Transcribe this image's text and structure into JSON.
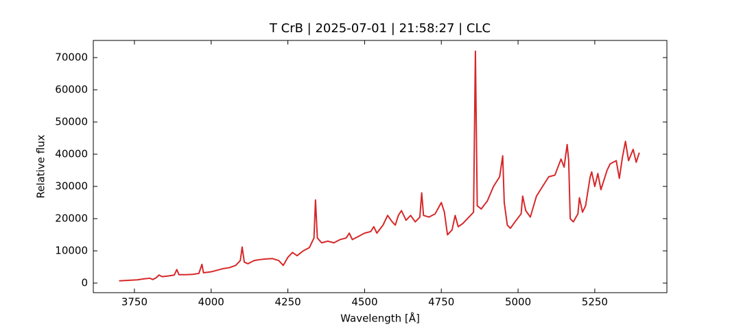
{
  "chart_data": {
    "type": "line",
    "title": "T CrB | 2025-07-01 | 21:58:27 | CLC",
    "x_label": "Wavelength [Å]",
    "y_label": "Relative flux",
    "color": "#d62728",
    "xlim": [
      3616,
      5485
    ],
    "ylim": [
      -2980,
      75320
    ],
    "xticks": [
      3750,
      4000,
      4250,
      4500,
      4750,
      5000,
      5250
    ],
    "yticks": [
      0,
      10000,
      20000,
      30000,
      40000,
      50000,
      60000,
      70000
    ],
    "x": [
      3700,
      3720,
      3740,
      3760,
      3780,
      3800,
      3810,
      3820,
      3830,
      3840,
      3860,
      3880,
      3888,
      3895,
      3920,
      3940,
      3960,
      3970,
      3975,
      4000,
      4020,
      4040,
      4060,
      4080,
      4095,
      4101,
      4108,
      4120,
      4140,
      4160,
      4180,
      4200,
      4220,
      4235,
      4250,
      4265,
      4280,
      4300,
      4320,
      4335,
      4340,
      4346,
      4360,
      4380,
      4400,
      4420,
      4440,
      4450,
      4460,
      4480,
      4500,
      4520,
      4530,
      4540,
      4560,
      4575,
      4590,
      4600,
      4610,
      4620,
      4635,
      4650,
      4665,
      4680,
      4686,
      4692,
      4710,
      4730,
      4750,
      4760,
      4770,
      4785,
      4795,
      4805,
      4820,
      4840,
      4855,
      4861,
      4867,
      4880,
      4900,
      4920,
      4940,
      4950,
      4955,
      4965,
      4975,
      4990,
      5010,
      5015,
      5025,
      5040,
      5060,
      5080,
      5100,
      5120,
      5140,
      5150,
      5160,
      5165,
      5170,
      5180,
      5195,
      5200,
      5210,
      5220,
      5235,
      5240,
      5250,
      5260,
      5270,
      5290,
      5300,
      5320,
      5330,
      5340,
      5350,
      5360,
      5375,
      5385,
      5395
    ],
    "values": [
      700,
      800,
      900,
      1000,
      1300,
      1500,
      1100,
      1600,
      2500,
      2000,
      2200,
      2500,
      4200,
      2600,
      2600,
      2700,
      3000,
      5800,
      3200,
      3500,
      4000,
      4500,
      4800,
      5500,
      7000,
      11200,
      6500,
      6000,
      7000,
      7300,
      7500,
      7600,
      7000,
      5500,
      8000,
      9500,
      8500,
      10000,
      11000,
      14000,
      25800,
      14000,
      12500,
      13000,
      12500,
      13500,
      14000,
      15500,
      13500,
      14500,
      15500,
      16000,
      17500,
      15500,
      18000,
      21000,
      19000,
      18000,
      21000,
      22500,
      19500,
      21000,
      19000,
      20500,
      28000,
      21000,
      20500,
      21500,
      25000,
      22000,
      15000,
      16500,
      21000,
      17500,
      18500,
      20500,
      22000,
      72000,
      24000,
      23000,
      25500,
      30000,
      33000,
      39500,
      25000,
      18000,
      17000,
      19000,
      21500,
      27000,
      22500,
      20500,
      27000,
      30000,
      33000,
      33500,
      38500,
      36000,
      43000,
      38000,
      20000,
      19000,
      21500,
      26500,
      22000,
      24000,
      33000,
      34500,
      30000,
      34000,
      29000,
      35000,
      37000,
      38000,
      32500,
      39000,
      44000,
      38000,
      41500,
      37500,
      40500
    ]
  }
}
